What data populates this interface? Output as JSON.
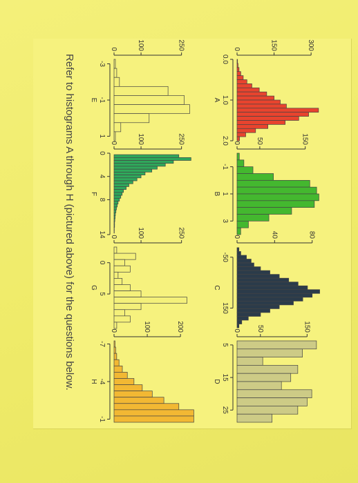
{
  "caption": "Refer to histograms A through H (pictured above) for the questions below.",
  "chart_data": [
    {
      "type": "bar",
      "label": "A",
      "color": "#e8442e",
      "bins": [
        0.05,
        0.15,
        0.25,
        0.35,
        0.45,
        0.55,
        0.65,
        0.75,
        0.85,
        0.95,
        1.05,
        1.15,
        1.25,
        1.35,
        1.45,
        1.55,
        1.65,
        1.75,
        1.85,
        1.95
      ],
      "values": [
        2,
        4,
        8,
        15,
        25,
        40,
        60,
        90,
        120,
        150,
        175,
        200,
        330,
        290,
        250,
        195,
        125,
        75,
        35,
        10
      ],
      "x_ticks": [
        "0.0",
        "1.0",
        "2.0"
      ],
      "x_tick_values": [
        0,
        1,
        2
      ],
      "xlim": [
        0,
        2
      ],
      "y_ticks": [
        "0",
        "150",
        "300"
      ],
      "y_tick_values": [
        0,
        150,
        300
      ],
      "ylim": [
        0,
        350
      ]
    },
    {
      "type": "bar",
      "label": "B",
      "color": "#44b82f",
      "bins": [
        -1.75,
        -1.25,
        -0.75,
        -0.25,
        0.25,
        0.75,
        1.25,
        1.75,
        2.25,
        2.75,
        3.25,
        3.75
      ],
      "values": [
        5,
        15,
        35,
        80,
        160,
        175,
        180,
        170,
        120,
        70,
        25,
        8
      ],
      "x_ticks": [
        "-1",
        "1",
        "3"
      ],
      "x_tick_values": [
        -1,
        1,
        3
      ],
      "xlim": [
        -2,
        4
      ],
      "y_ticks": [
        "0",
        "50",
        "150"
      ],
      "y_tick_values": [
        0,
        50,
        150
      ],
      "ylim": [
        0,
        190
      ]
    },
    {
      "type": "bar",
      "label": "C",
      "color": "#2b3b4a",
      "bins": [
        -80,
        -65,
        -50,
        -35,
        -20,
        -5,
        10,
        25,
        40,
        55,
        70,
        85,
        100,
        115,
        130,
        145,
        160,
        175,
        190,
        205,
        220
      ],
      "values": [
        2,
        4,
        10,
        15,
        18,
        25,
        35,
        45,
        55,
        65,
        75,
        88,
        80,
        70,
        60,
        45,
        35,
        25,
        12,
        5,
        2
      ],
      "x_ticks": [
        "-50",
        "150"
      ],
      "x_tick_values": [
        -50,
        150
      ],
      "xlim": [
        -90,
        230
      ],
      "y_ticks": [
        "0",
        "40",
        "80"
      ],
      "y_tick_values": [
        0,
        40,
        80
      ],
      "ylim": [
        0,
        92
      ]
    },
    {
      "type": "bar",
      "label": "D",
      "color": "#cdcb86",
      "bins": [
        5,
        7.5,
        10,
        12.5,
        15,
        17.5,
        20,
        22.5,
        25,
        27.5
      ],
      "values": [
        170,
        140,
        55,
        130,
        115,
        95,
        160,
        150,
        130,
        75
      ],
      "x_ticks": [
        "5",
        "15",
        "25"
      ],
      "x_tick_values": [
        5,
        15,
        25
      ],
      "xlim": [
        3.75,
        28.75
      ],
      "y_ticks": [
        "0",
        "50",
        "150"
      ],
      "y_tick_values": [
        0,
        50,
        150
      ],
      "ylim": [
        0,
        185
      ]
    },
    {
      "type": "bar",
      "label": "E",
      "color": "#f4f07a",
      "bins": [
        -3,
        -2.5,
        -2,
        -1.5,
        -1,
        -0.5,
        0,
        0.5,
        1
      ],
      "values": [
        5,
        10,
        20,
        200,
        260,
        280,
        130,
        25,
        5
      ],
      "x_ticks": [
        "-3",
        "-1",
        "1"
      ],
      "x_tick_values": [
        -3,
        -1,
        1
      ],
      "xlim": [
        -3.25,
        1.25
      ],
      "y_ticks": [
        "0",
        "100",
        "250"
      ],
      "y_tick_values": [
        0,
        100,
        250
      ],
      "ylim": [
        0,
        320
      ]
    },
    {
      "type": "bar",
      "label": "F",
      "color": "#2fa95b",
      "bins": [
        0.5,
        1,
        1.5,
        2,
        2.5,
        3,
        3.5,
        4,
        4.5,
        5,
        5.5,
        6,
        6.5,
        7,
        7.5,
        8,
        8.5,
        9,
        9.5,
        10,
        10.5,
        11,
        11.5,
        12,
        12.5,
        13,
        13.5
      ],
      "values": [
        240,
        285,
        220,
        190,
        160,
        140,
        115,
        100,
        85,
        70,
        55,
        45,
        35,
        30,
        25,
        20,
        15,
        12,
        9,
        7,
        5,
        4,
        3,
        2,
        2,
        1,
        1
      ],
      "x_ticks": [
        "0",
        "4",
        "8",
        "14"
      ],
      "x_tick_values": [
        0,
        4,
        8,
        14
      ],
      "xlim": [
        0,
        14
      ],
      "y_ticks": [
        "0",
        "100",
        "250"
      ],
      "y_tick_values": [
        0,
        100,
        250
      ],
      "ylim": [
        0,
        320
      ]
    },
    {
      "type": "bar",
      "label": "G",
      "color": "#f4f07a",
      "bins": [
        -2,
        -1,
        0,
        1,
        2,
        3,
        4,
        5,
        6,
        7,
        8,
        9,
        10
      ],
      "values": [
        10,
        80,
        40,
        60,
        15,
        30,
        60,
        100,
        270,
        100,
        40,
        60,
        10
      ],
      "x_ticks": [
        "0",
        "5"
      ],
      "x_tick_values": [
        0,
        5
      ],
      "xlim": [
        -2.5,
        10.5
      ],
      "y_ticks": [
        "0",
        "100",
        "250"
      ],
      "y_tick_values": [
        0,
        100,
        250
      ],
      "ylim": [
        0,
        320
      ]
    },
    {
      "type": "bar",
      "label": "H",
      "color": "#f2b833",
      "bins": [
        -7,
        -6.5,
        -6,
        -5.5,
        -5,
        -4.5,
        -4,
        -3.5,
        -3,
        -2.5,
        -2,
        -1.5,
        -1
      ],
      "values": [
        3,
        5,
        8,
        15,
        25,
        40,
        60,
        85,
        115,
        150,
        195,
        240,
        240
      ],
      "x_ticks": [
        "-7",
        "-4",
        "-1"
      ],
      "x_tick_values": [
        -7,
        -4,
        -1
      ],
      "xlim": [
        -7.25,
        -0.75
      ],
      "y_ticks": [
        "0",
        "100",
        "200"
      ],
      "y_tick_values": [
        0,
        100,
        200
      ],
      "ylim": [
        0,
        260
      ]
    }
  ]
}
